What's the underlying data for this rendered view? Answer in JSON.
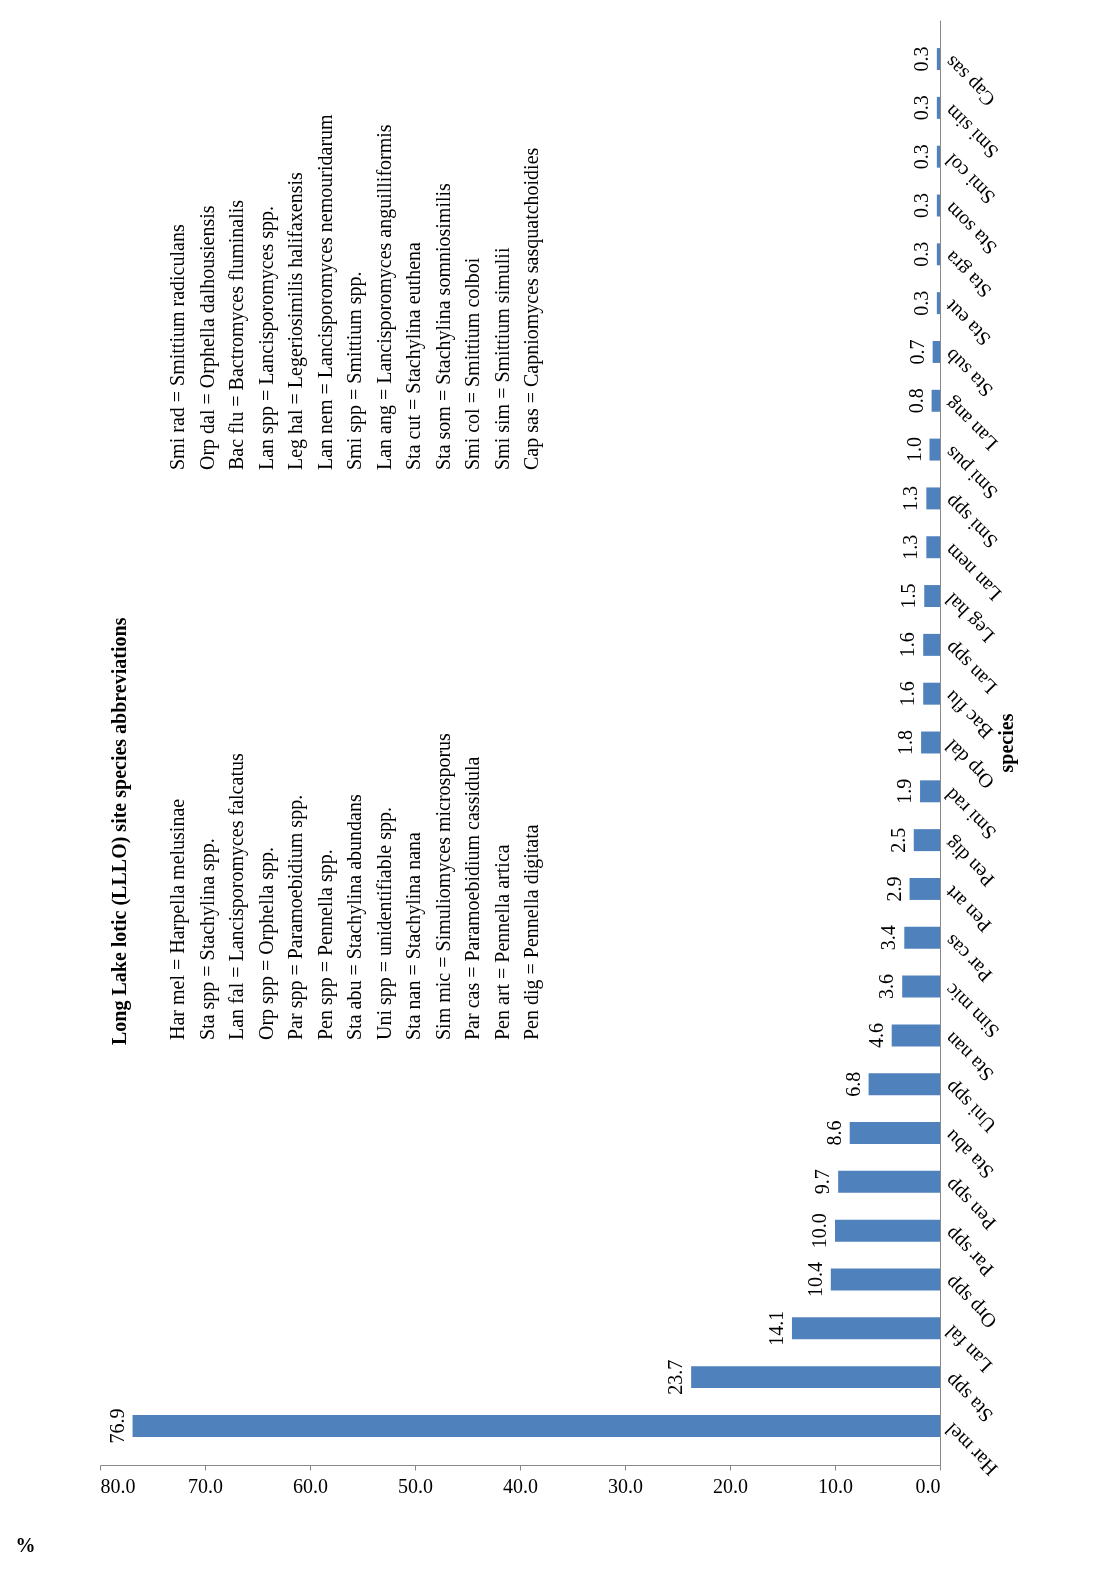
{
  "chart_data": {
    "type": "bar",
    "orientation": "horizontal",
    "title": "Long Lake lotic (LLLO) site  species abbreviations",
    "xlabel": "%",
    "ylabel": "species",
    "categories": [
      "Cap sas",
      "Smi sim",
      "Smi col",
      "Sta som",
      "Sta gra",
      "Sta eut",
      "Sta sub",
      "Lan ang",
      "Smi pus",
      "Smi spp",
      "Lan nem",
      "Leg hal",
      "Lan spp",
      "Bac flu",
      "Orp dal",
      "Smi rad",
      "Pen dig",
      "Pen art",
      "Par cas",
      "Sim mic",
      "Sta nan",
      "Uni spp",
      "Sta abu",
      "Pen spp",
      "Par spp",
      "Orp spp",
      "Lan fal",
      "Sta spp",
      "Har mel"
    ],
    "values": [
      0.3,
      0.3,
      0.3,
      0.3,
      0.3,
      0.3,
      0.7,
      0.8,
      1.0,
      1.3,
      1.3,
      1.5,
      1.6,
      1.6,
      1.8,
      1.9,
      2.5,
      2.9,
      3.4,
      3.6,
      4.6,
      6.8,
      8.6,
      9.7,
      10.0,
      10.4,
      14.1,
      23.7,
      76.9
    ],
    "value_labels": [
      "0.3",
      "0.3",
      "0.3",
      "0.3",
      "0.3",
      "0.3",
      "0.7",
      "0.8",
      "1.0",
      "1.3",
      "1.3",
      "1.5",
      "1.6",
      "1.6",
      "1.8",
      "1.9",
      "2.5",
      "2.9",
      "3.4",
      "3.6",
      "4.6",
      "6.8",
      "8.6",
      "9.7",
      "10.0",
      "10.4",
      "14.1",
      "23.7",
      "76.9"
    ],
    "color": "#4f81bd",
    "xlim": [
      80,
      0
    ],
    "xticks": [
      {
        "value": 80,
        "label": "80.0"
      },
      {
        "value": 70,
        "label": "70.0"
      },
      {
        "value": 60,
        "label": "60.0"
      },
      {
        "value": 50,
        "label": "50.0"
      },
      {
        "value": 40,
        "label": "40.0"
      },
      {
        "value": 30,
        "label": "30.0"
      },
      {
        "value": 20,
        "label": "20.0"
      },
      {
        "value": 10,
        "label": "10.0"
      },
      {
        "value": 0,
        "label": "0.0"
      }
    ],
    "grid": false,
    "annotations": [
      "Har mel = Harpella melusinae",
      "Sta spp = Stachylina spp.",
      "Lan fal = Lancisporomyces falcatus",
      "Orp spp = Orphella spp.",
      "Par spp = Paramoebidium spp.",
      "Pen spp = Pennella spp.",
      "Sta abu = Stachylina abundans",
      "Uni spp = unidentifiable spp.",
      "Sta nan = Stachylina nana",
      "Sim mic = Simuliomyces microsporus",
      "Par cas = Paramoebidium cassidula",
      "Pen art = Pennella artica",
      "Pen dig = Pennella digitata",
      "Smi rad = Smittium radiculans",
      "Orp dal = Orphella dalhousiensis",
      "Bac flu = Bactromyces fluminalis",
      "Lan spp = Lancisporomyces spp.",
      "Leg hal = Legeriosimilis halifaxensis",
      "Lan nem = Lancisporomyces nemouridarum",
      "Smi spp = Smittium spp.",
      "Lan ang = Lancisporomyces anguilliformis",
      "Sta cut = Stachylina euthena",
      "Sta som = Stachylina somniosimilis",
      "Smi col = Smittium colboi",
      "Smi sim = Smittium simulii",
      "Cap sas = Capniomyces sasquatchoidies"
    ]
  }
}
